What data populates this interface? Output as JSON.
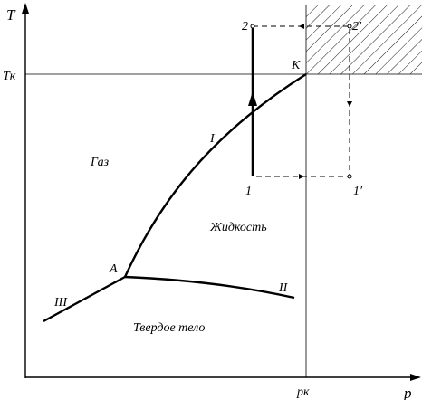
{
  "axes": {
    "y_label": "T",
    "x_label": "p",
    "y_tick_critical": "Tк",
    "x_tick_critical": "pк"
  },
  "regions": {
    "gas": "Газ",
    "liquid": "Жидкость",
    "solid": "Твердое тело"
  },
  "points": {
    "triple": "A",
    "critical": "K",
    "p1": "1",
    "p2": "2",
    "p1_prime": "1′",
    "p2_prime": "2′"
  },
  "curves": {
    "evaporation": "I",
    "melting": "II",
    "sublimation": "III"
  }
}
